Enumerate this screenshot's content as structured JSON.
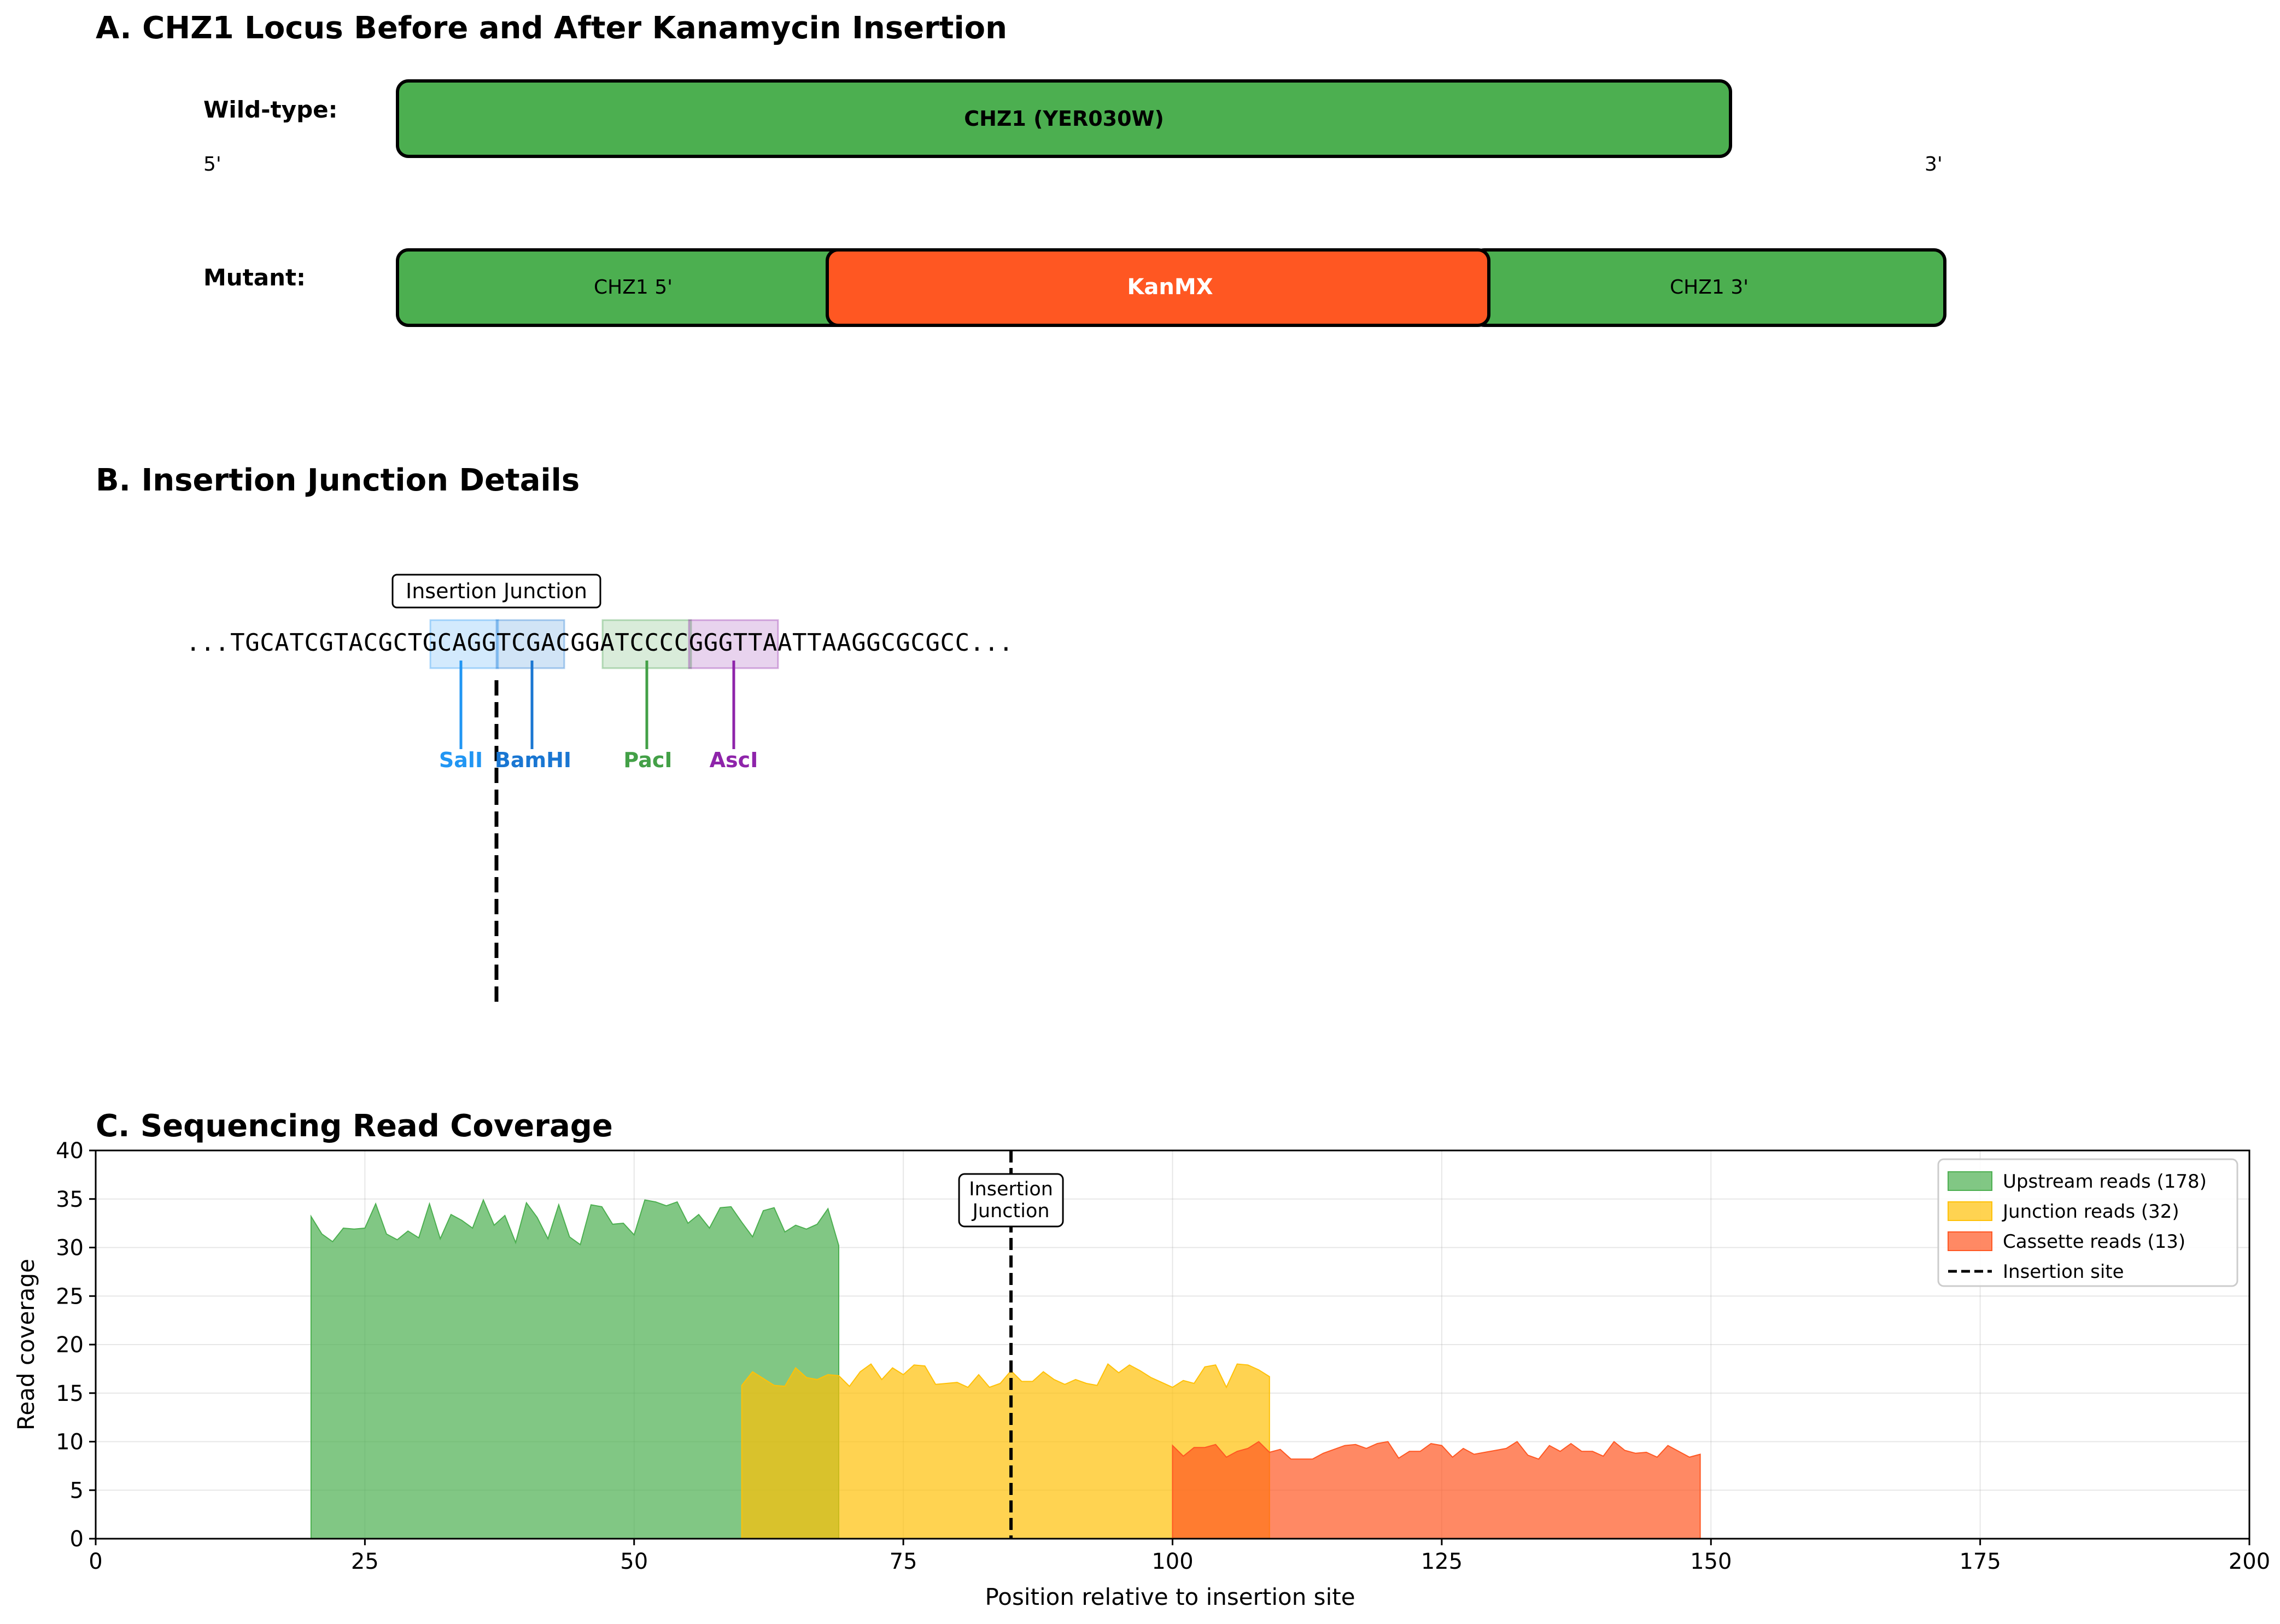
{
  "panel_a": {
    "title": "A. CHZ1 Locus Before and After Kanamycin Insertion",
    "wildtype_label": "Wild-type:",
    "mutant_label": "Mutant:",
    "five_prime": "5'",
    "three_prime": "3'",
    "wildtype_gene": "CHZ1 (YER030W)",
    "mutant_segments": [
      "CHZ1 5'",
      "KanMX",
      "CHZ1 3'"
    ],
    "colors": {
      "gene": "#4caf50",
      "cassette": "#ff5722"
    }
  },
  "panel_b": {
    "title": "B. Insertion Junction Details",
    "junction_label": "Insertion Junction",
    "sequence_chars": [
      "...",
      "T",
      "G",
      "C",
      "A",
      "T",
      "C",
      "G",
      "T",
      "A",
      "C",
      "G",
      "C",
      "T",
      "G",
      "C",
      "A",
      "G",
      "G",
      "T",
      "C",
      "G",
      "A",
      "C",
      "G",
      "G",
      "A",
      "T",
      "C",
      "C",
      "C",
      "C",
      "G",
      "G",
      "G",
      "T",
      "T",
      "A",
      "A",
      "T",
      "T",
      "A",
      "A",
      "G",
      "G",
      "C",
      "G",
      "C",
      "G",
      "C",
      "C",
      "..."
    ],
    "sites": [
      {
        "name": "SalI",
        "color": "#2196f3"
      },
      {
        "name": "BamHI",
        "color": "#1976d2"
      },
      {
        "name": "PacI",
        "color": "#43a047"
      },
      {
        "name": "AscI",
        "color": "#8e24aa"
      }
    ]
  },
  "chart_data": {
    "type": "area",
    "title": "C. Sequencing Read Coverage",
    "xlabel": "Position relative to insertion site",
    "ylabel": "Read coverage",
    "xlim": [
      0,
      200
    ],
    "ylim": [
      0,
      40
    ],
    "xticks": [
      0,
      25,
      50,
      75,
      100,
      125,
      150,
      175,
      200
    ],
    "yticks": [
      0,
      5,
      10,
      15,
      20,
      25,
      30,
      35,
      40
    ],
    "grid": true,
    "legend_position": "top-right",
    "series": [
      {
        "name": "Upstream reads (178)",
        "color": "#4caf50",
        "x_start": 20,
        "x_end": 69,
        "values": [
          33.2,
          31.4,
          30.6,
          32.0,
          31.9,
          32.0,
          34.5,
          31.4,
          30.8,
          31.7,
          31.0,
          34.5,
          30.9,
          33.4,
          32.8,
          32.0,
          34.9,
          32.3,
          33.3,
          30.5,
          34.6,
          33.1,
          30.9,
          34.4,
          31.1,
          30.3,
          34.4,
          34.2,
          32.4,
          32.5,
          31.3,
          34.9,
          34.7,
          34.3,
          34.7,
          32.5,
          33.4,
          32.0,
          34.1,
          34.2,
          32.6,
          31.1,
          33.8,
          34.1,
          31.6,
          32.3,
          31.9,
          32.4,
          34.0,
          30.2
        ]
      },
      {
        "name": "Junction reads (32)",
        "color": "#ffc107",
        "x_start": 60,
        "x_end": 109,
        "values": [
          15.8,
          17.2,
          16.5,
          15.8,
          15.7,
          17.6,
          16.6,
          16.4,
          16.9,
          16.8,
          15.7,
          17.2,
          18.0,
          16.4,
          17.6,
          16.9,
          17.9,
          17.8,
          15.9,
          16.0,
          16.1,
          15.6,
          16.9,
          15.6,
          16.0,
          17.3,
          16.2,
          16.2,
          17.2,
          16.4,
          15.9,
          16.4,
          16.0,
          15.8,
          18.0,
          17.1,
          17.9,
          17.3,
          16.6,
          16.1,
          15.6,
          16.3,
          16.0,
          17.7,
          17.9,
          15.6,
          18.0,
          17.9,
          17.4,
          16.7
        ]
      },
      {
        "name": "Cassette reads (13)",
        "color": "#ff5722",
        "x_start": 100,
        "x_end": 149,
        "values": [
          9.6,
          8.5,
          9.4,
          9.4,
          9.7,
          8.4,
          9.0,
          9.3,
          10.0,
          8.9,
          9.2,
          8.2,
          8.2,
          8.2,
          8.8,
          9.2,
          9.6,
          9.7,
          9.3,
          9.8,
          10.0,
          8.3,
          9.0,
          9.0,
          9.8,
          9.6,
          8.4,
          9.3,
          8.7,
          8.9,
          9.1,
          9.3,
          10.0,
          8.6,
          8.2,
          9.6,
          9.0,
          9.8,
          9.0,
          9.0,
          8.5,
          10.0,
          9.1,
          8.8,
          8.9,
          8.4,
          9.6,
          9.0,
          8.4,
          8.7
        ]
      }
    ],
    "vline": {
      "x": 85,
      "name": "Insertion site",
      "annotation_lines": [
        "Insertion",
        "Junction"
      ]
    }
  }
}
